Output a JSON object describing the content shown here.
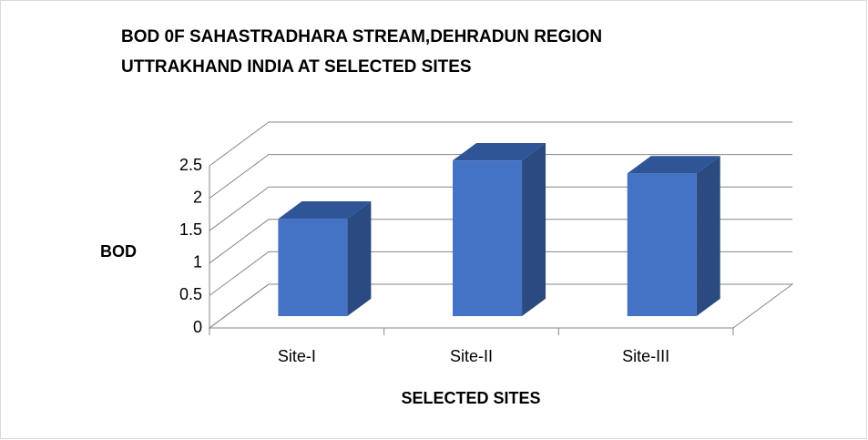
{
  "chart_data": {
    "type": "bar3d",
    "title_lines": [
      "BOD 0F SAHASTRADHARA STREAM,DEHRADUN REGION",
      "UTTRAKHAND INDIA AT SELECTED SITES"
    ],
    "x_label": "SELECTED SITES",
    "y_label": "BOD",
    "categories": [
      "Site-I",
      "Site-II",
      "Site-III"
    ],
    "values": [
      1.5,
      2.4,
      2.2
    ],
    "color": "#4472c4",
    "ylim": [
      0,
      2.5
    ],
    "yticks": [
      0,
      0.5,
      1,
      1.5,
      2,
      2.5
    ],
    "grid": true
  }
}
